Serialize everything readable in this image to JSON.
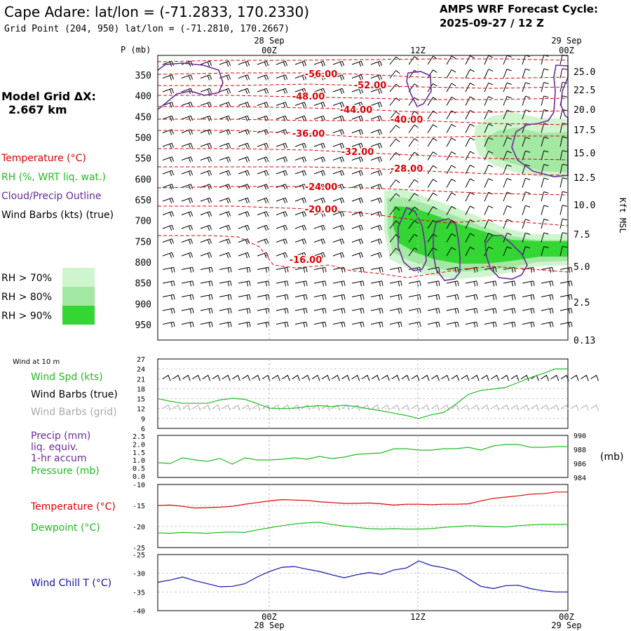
{
  "header": {
    "title": "Cape Adare:  lat/lon = (-71.2833, 170.2330)",
    "grid_point": "Grid Point (204, 950) lat/lon = (-71.2810, 170.2667)",
    "cycle_label": "AMPS WRF Forecast Cycle:",
    "cycle_value": "2025-09-27 / 12  Z",
    "model_grid_label": "Model Grid ΔX:",
    "model_grid_value": "2.667 km"
  },
  "time_axis": {
    "top_dates": [
      "28 Sep",
      "29 Sep"
    ],
    "labels": [
      "00Z",
      "12Z",
      "00Z"
    ],
    "bottom_dates": [
      "28 Sep",
      "29 Sep"
    ],
    "positions_hr": [
      0,
      12,
      24
    ],
    "range_hr": [
      -9,
      24
    ]
  },
  "colors": {
    "temperature": "#dd0000",
    "rh": "#22bb22",
    "cloud": "#6a2a9a",
    "grid_wind": "#999999",
    "wind_chill": "#1010aa",
    "rh70": "#cff5cf",
    "rh80": "#a3e8a3",
    "rh90": "#33d633"
  },
  "chart_data": [
    {
      "type": "heatmap",
      "name": "cross-section",
      "pressure_label": "P (mb)",
      "pressure_ticks": [
        350,
        400,
        450,
        500,
        550,
        600,
        650,
        700,
        750,
        800,
        850,
        900,
        950
      ],
      "height_label": "Kft MSL",
      "height_ticks": [
        "25.0",
        "22.5",
        "20.0",
        "17.5",
        "15.0",
        "12.5",
        "10.0",
        "7.5",
        "5.0",
        "2.5",
        "0.13"
      ],
      "legend": {
        "temperature": "Temperature (°C)",
        "rh": "RH (%, WRT liq. wat.)",
        "cloud": "Cloud/Precip Outline",
        "wind": "Wind Barbs (kts) (true)",
        "rh_levels": [
          "RH > 70%",
          "RH > 80%",
          "RH > 90%"
        ]
      },
      "isotherm_labels": [
        "-56.00",
        "-52.00",
        "-48.00",
        "-44.00",
        "-40.00",
        "-36.00",
        "-32.00",
        "-28.00",
        "-24.00",
        "-20.00",
        "-16.00"
      ]
    },
    {
      "type": "line",
      "name": "wind-10m",
      "title": "Wind at 10 m",
      "labels": [
        "Wind Spd (kts)",
        "Wind Barbs (true)",
        "Wind Barbs (grid)"
      ],
      "yticks": [
        6,
        9,
        12,
        15,
        18,
        21,
        24,
        27
      ],
      "ylim": [
        6,
        27
      ],
      "series": [
        {
          "name": "Wind Spd (kts)",
          "x": [
            -9,
            -8,
            -7,
            -6,
            -5,
            -4,
            -3,
            -2,
            -1,
            0,
            1,
            2,
            3,
            4,
            5,
            6,
            7,
            8,
            9,
            10,
            11,
            12,
            13,
            14,
            15,
            16,
            17,
            18,
            19,
            20,
            21,
            22,
            23,
            24
          ],
          "values": [
            15,
            14.2,
            13.6,
            13.6,
            13.6,
            14.6,
            15.1,
            14.8,
            13.5,
            12.1,
            12.0,
            12.1,
            12.6,
            12.9,
            12.6,
            13.0,
            12.6,
            11.9,
            11.3,
            10.6,
            9.9,
            9.0,
            10.1,
            10.8,
            13.4,
            16.3,
            17.5,
            17.9,
            18.4,
            19.9,
            21.4,
            22.6,
            24.0,
            24.0
          ]
        }
      ]
    },
    {
      "type": "line",
      "name": "precip-pressure",
      "labels": [
        "Precip (mm)",
        "liq. equiv.",
        "1-hr accum",
        "Pressure (mb)"
      ],
      "precip_ticks": [
        "0.0",
        "0.5",
        "1.0",
        "1.5",
        "2.0",
        "2.5"
      ],
      "pressure_ticks": [
        984,
        986,
        988,
        990
      ],
      "pressure_unit": "(mb)",
      "ylim": [
        984,
        990
      ],
      "series": [
        {
          "name": "Pressure (mb)",
          "x": [
            -9,
            -8,
            -7,
            -6,
            -5,
            -4,
            -3,
            -2,
            -1,
            0,
            1,
            2,
            3,
            4,
            5,
            6,
            7,
            8,
            9,
            10,
            11,
            12,
            13,
            14,
            15,
            16,
            17,
            18,
            19,
            20,
            21,
            22,
            23,
            24
          ],
          "values": [
            986.1,
            986.0,
            986.8,
            986.5,
            986.3,
            986.7,
            985.9,
            986.8,
            986.5,
            986.5,
            986.6,
            986.8,
            986.6,
            987.0,
            986.7,
            986.9,
            987.3,
            987.4,
            987.5,
            988.1,
            988.1,
            987.9,
            987.9,
            988.1,
            988.1,
            988.3,
            987.9,
            988.5,
            988.7,
            988.7,
            988.3,
            988.3,
            988.4,
            988.4
          ]
        }
      ]
    },
    {
      "type": "line",
      "name": "temperature-dewpoint",
      "labels": [
        "Temperature (°C)",
        "Dewpoint (°C)"
      ],
      "yticks": [
        -10,
        -15,
        -20,
        -25
      ],
      "ylim": [
        -25,
        -10
      ],
      "series": [
        {
          "name": "Temperature (°C)",
          "x": [
            -9,
            -8,
            -7,
            -6,
            -5,
            -4,
            -3,
            -2,
            -1,
            0,
            1,
            2,
            3,
            4,
            5,
            6,
            7,
            8,
            9,
            10,
            11,
            12,
            13,
            14,
            15,
            16,
            17,
            18,
            19,
            20,
            21,
            22,
            23,
            24
          ],
          "values": [
            -15.0,
            -14.9,
            -15.2,
            -15.6,
            -15.5,
            -15.4,
            -15.2,
            -14.7,
            -14.3,
            -13.9,
            -13.6,
            -13.7,
            -13.8,
            -14.1,
            -14.3,
            -14.5,
            -14.5,
            -14.4,
            -14.6,
            -14.9,
            -14.7,
            -14.7,
            -14.8,
            -14.7,
            -14.7,
            -14.6,
            -13.9,
            -13.3,
            -13.0,
            -12.7,
            -12.3,
            -12.2,
            -11.8,
            -11.8
          ]
        },
        {
          "name": "Dewpoint (°C)",
          "x": [
            -9,
            -8,
            -7,
            -6,
            -5,
            -4,
            -3,
            -2,
            -1,
            0,
            1,
            2,
            3,
            4,
            5,
            6,
            7,
            8,
            9,
            10,
            11,
            12,
            13,
            14,
            15,
            16,
            17,
            18,
            19,
            20,
            21,
            22,
            23,
            24
          ],
          "values": [
            -21.5,
            -21.6,
            -21.4,
            -21.5,
            -21.6,
            -21.4,
            -21.3,
            -21.4,
            -20.8,
            -20.3,
            -19.8,
            -19.4,
            -19.1,
            -19.0,
            -19.5,
            -19.9,
            -20.2,
            -20.5,
            -20.6,
            -20.5,
            -20.6,
            -20.6,
            -20.5,
            -20.2,
            -20.0,
            -19.8,
            -19.9,
            -20.0,
            -20.1,
            -19.8,
            -19.6,
            -19.5,
            -19.5,
            -19.5
          ]
        }
      ]
    },
    {
      "type": "line",
      "name": "wind-chill",
      "labels": [
        "Wind Chill T (°C)"
      ],
      "yticks": [
        -25,
        -30,
        -35,
        -40
      ],
      "ylim": [
        -40,
        -25
      ],
      "series": [
        {
          "name": "Wind Chill T (°C)",
          "x": [
            -9,
            -8,
            -7,
            -6,
            -5,
            -4,
            -3,
            -2,
            -1,
            0,
            1,
            2,
            3,
            4,
            5,
            6,
            7,
            8,
            9,
            10,
            11,
            12,
            13,
            14,
            15,
            16,
            17,
            18,
            19,
            20,
            21,
            22,
            23,
            24
          ],
          "values": [
            -32.4,
            -31.8,
            -31.0,
            -32.0,
            -32.8,
            -33.6,
            -33.5,
            -32.8,
            -31.0,
            -29.5,
            -28.4,
            -28.2,
            -28.9,
            -29.5,
            -30.4,
            -31.2,
            -30.4,
            -29.8,
            -30.3,
            -29.1,
            -28.6,
            -26.7,
            -27.9,
            -28.5,
            -29.4,
            -31.5,
            -33.5,
            -34.1,
            -33.3,
            -33.2,
            -34.1,
            -34.7,
            -35.0,
            -35.0
          ]
        }
      ]
    }
  ]
}
